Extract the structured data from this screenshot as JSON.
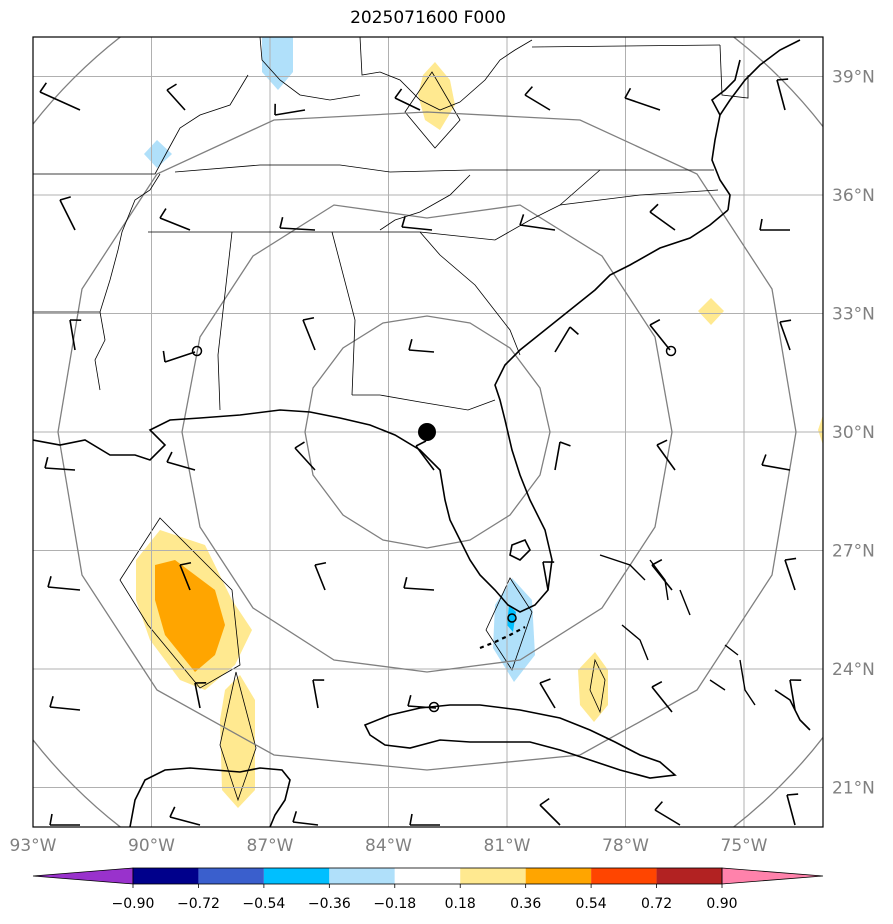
{
  "title": "2025071600 F000",
  "map": {
    "lon_range": [
      -93,
      -73
    ],
    "lat_range": [
      20,
      40
    ],
    "center": {
      "lon": -83,
      "lat": 30
    },
    "lon_ticks": [
      {
        "value": -93,
        "label": "93°W"
      },
      {
        "value": -90,
        "label": "90°W"
      },
      {
        "value": -87,
        "label": "87°W"
      },
      {
        "value": -84,
        "label": "84°W"
      },
      {
        "value": -81,
        "label": "81°W"
      },
      {
        "value": -78,
        "label": "78°W"
      },
      {
        "value": -75,
        "label": "75°W"
      }
    ],
    "lat_ticks": [
      {
        "value": 39,
        "label": "39°N"
      },
      {
        "value": 36,
        "label": "36°N"
      },
      {
        "value": 33,
        "label": "33°N"
      },
      {
        "value": 30,
        "label": "30°N"
      },
      {
        "value": 27,
        "label": "27°N"
      },
      {
        "value": 24,
        "label": "24°N"
      },
      {
        "value": 21,
        "label": "21°N"
      }
    ],
    "colors": {
      "gridline": "#b0b0b0",
      "range_ring": "#808080",
      "coast": "#000000"
    }
  },
  "colorbar": {
    "levels": [
      "−0.90",
      "−0.72",
      "−0.54",
      "−0.36",
      "−0.18",
      "0.18",
      "0.36",
      "0.54",
      "0.72",
      "0.90"
    ],
    "colors": [
      "#9932cc",
      "#00008b",
      "#3a5fcd",
      "#00bfff",
      "#b0e0fa",
      "#ffffff",
      "#ffe990",
      "#ffa500",
      "#ff4500",
      "#b22222",
      "#ff82ab"
    ]
  }
}
